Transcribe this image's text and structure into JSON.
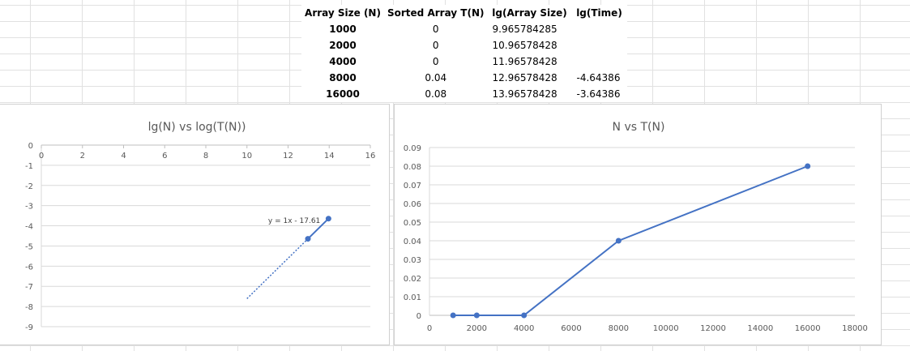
{
  "table": {
    "headers": [
      "Array Size (N)",
      "Sorted Array T(N)",
      "lg(Array Size)",
      "lg(Time)"
    ],
    "rows": [
      {
        "n": "1000",
        "t": "0",
        "lg_n": "9.965784285",
        "lg_t": ""
      },
      {
        "n": "2000",
        "t": "0",
        "lg_n": "10.96578428",
        "lg_t": ""
      },
      {
        "n": "4000",
        "t": "0",
        "lg_n": "11.96578428",
        "lg_t": ""
      },
      {
        "n": "8000",
        "t": "0.04",
        "lg_n": "12.96578428",
        "lg_t": "-4.64386"
      },
      {
        "n": "16000",
        "t": "0.08",
        "lg_n": "13.96578428",
        "lg_t": "-3.64386"
      }
    ]
  },
  "colors": {
    "series": "#4472c4",
    "grid": "#d9d9d9",
    "text": "#595959"
  },
  "chart_data": [
    {
      "type": "scatter",
      "title": "lg(N) vs log(T(N))",
      "xlabel": "",
      "ylabel": "",
      "xlim": [
        0,
        16
      ],
      "ylim": [
        -9,
        0
      ],
      "x_ticks": [
        "0",
        "2",
        "4",
        "6",
        "8",
        "10",
        "12",
        "14",
        "16"
      ],
      "y_ticks": [
        "0",
        "-1",
        "-2",
        "-3",
        "-4",
        "-5",
        "-6",
        "-7",
        "-8",
        "-9"
      ],
      "x_axis_position": "top",
      "grid": "horizontal",
      "series": [
        {
          "x": [
            12.96578428,
            13.96578428
          ],
          "y": [
            -4.64386,
            -3.64386
          ]
        }
      ],
      "trendline": {
        "type": "linear",
        "label": "y = 1x - 17.61",
        "slope": 1,
        "intercept": -17.61,
        "x_from": 10,
        "x_to": 12.96578428
      }
    },
    {
      "type": "line",
      "title": "N vs T(N)",
      "xlabel": "",
      "ylabel": "",
      "xlim": [
        0,
        18000
      ],
      "ylim": [
        0,
        0.09
      ],
      "x_ticks": [
        "0",
        "2000",
        "4000",
        "6000",
        "8000",
        "10000",
        "12000",
        "14000",
        "16000",
        "18000"
      ],
      "y_ticks": [
        "0",
        "0.01",
        "0.02",
        "0.03",
        "0.04",
        "0.05",
        "0.06",
        "0.07",
        "0.08",
        "0.09"
      ],
      "grid": "horizontal",
      "series": [
        {
          "x": [
            1000,
            2000,
            4000,
            8000,
            16000
          ],
          "y": [
            0,
            0,
            0,
            0.04,
            0.08
          ]
        }
      ]
    }
  ]
}
